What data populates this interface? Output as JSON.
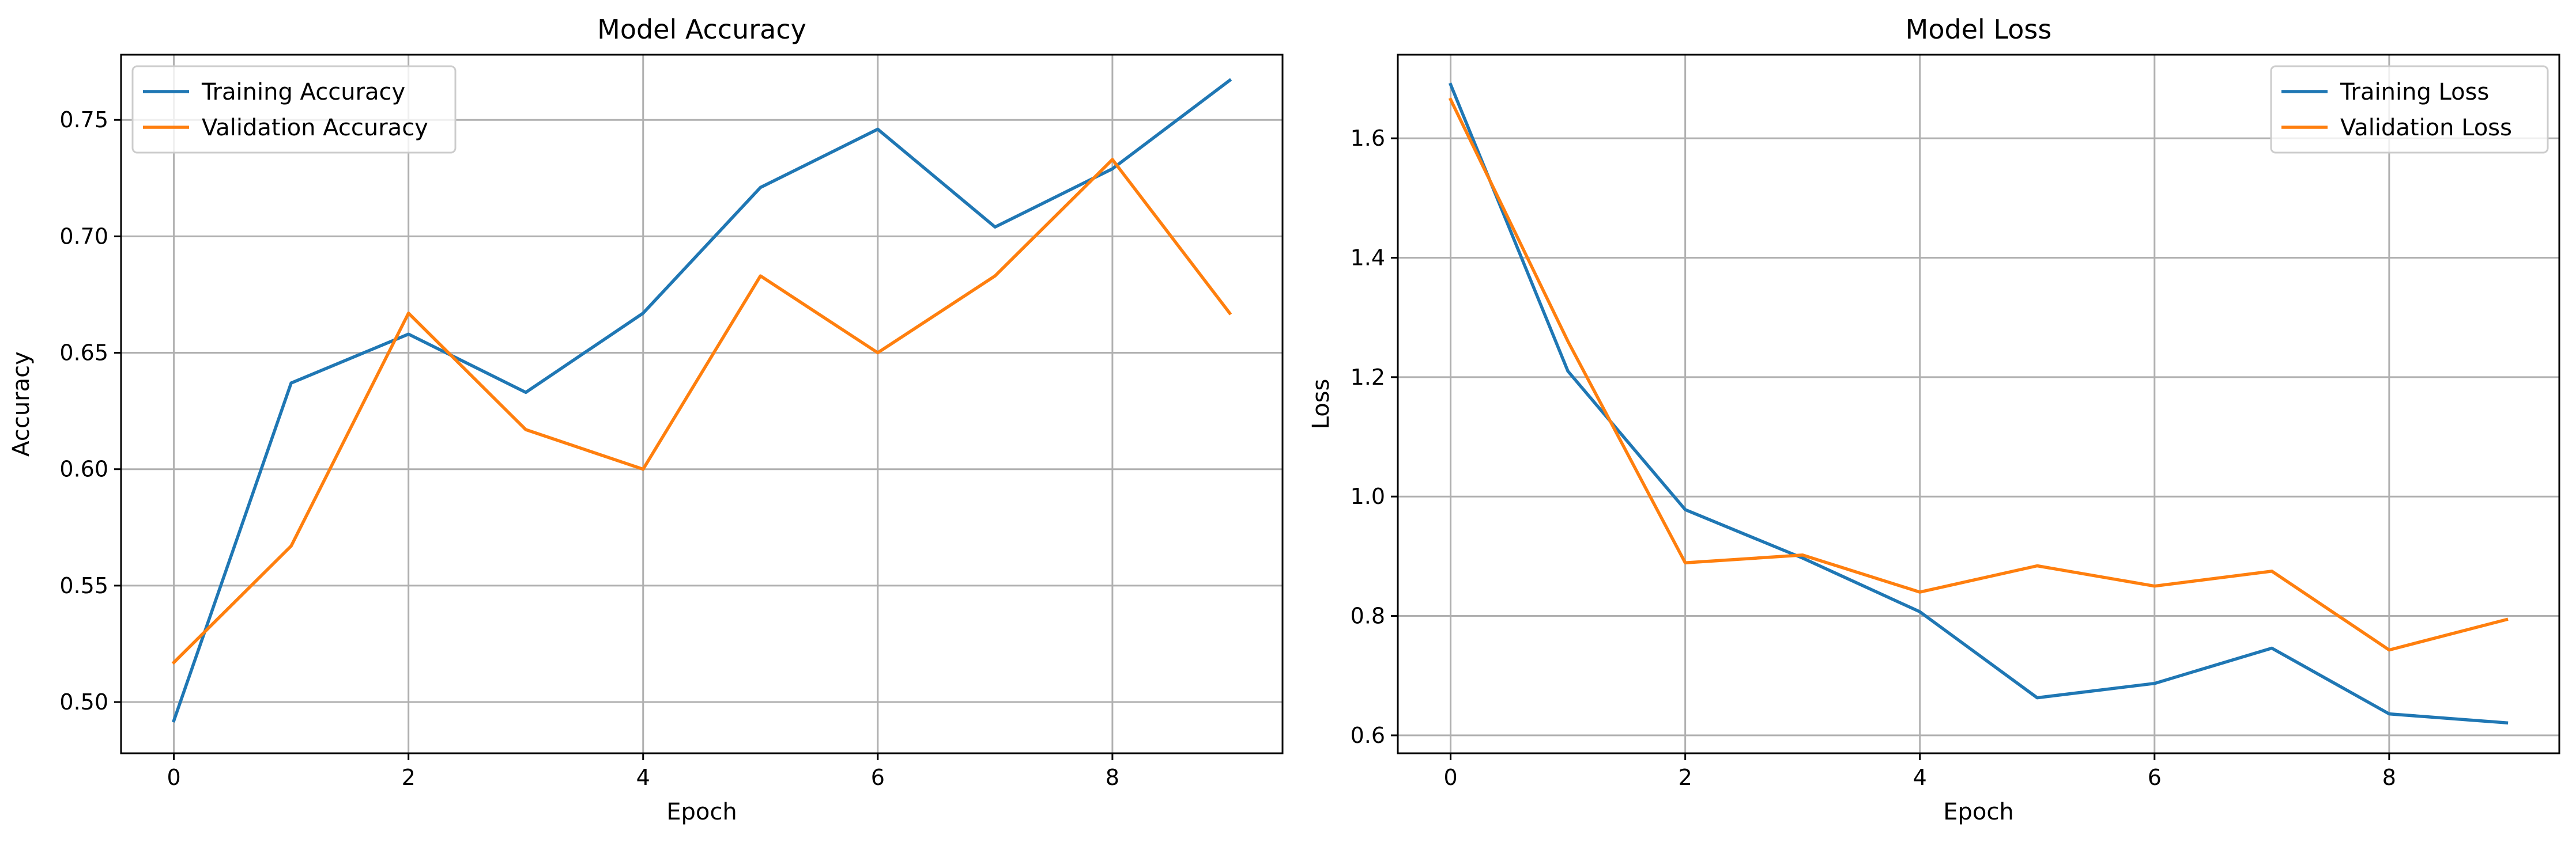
{
  "chart_data": [
    {
      "type": "line",
      "title": "Model Accuracy",
      "xlabel": "Epoch",
      "ylabel": "Accuracy",
      "xlim": [
        -0.45,
        9.45
      ],
      "ylim": [
        0.478,
        0.778
      ],
      "xticks": [
        0,
        2,
        4,
        6,
        8
      ],
      "yticks": [
        0.5,
        0.55,
        0.6,
        0.65,
        0.7,
        0.75
      ],
      "ytick_labels": [
        "0.50",
        "0.55",
        "0.60",
        "0.65",
        "0.70",
        "0.75"
      ],
      "grid": true,
      "legend_position": "upper-left",
      "x": [
        0,
        1,
        2,
        3,
        4,
        5,
        6,
        7,
        8,
        9
      ],
      "series": [
        {
          "name": "Training Accuracy",
          "color": "#1f77b4",
          "values": [
            0.492,
            0.637,
            0.658,
            0.633,
            0.667,
            0.721,
            0.746,
            0.704,
            0.729,
            0.767
          ]
        },
        {
          "name": "Validation Accuracy",
          "color": "#ff7f0e",
          "values": [
            0.517,
            0.567,
            0.667,
            0.617,
            0.6,
            0.683,
            0.65,
            0.683,
            0.733,
            0.667
          ]
        }
      ]
    },
    {
      "type": "line",
      "title": "Model Loss",
      "xlabel": "Epoch",
      "ylabel": "Loss",
      "xlim": [
        -0.45,
        9.45
      ],
      "ylim": [
        0.57,
        1.74
      ],
      "xticks": [
        0,
        2,
        4,
        6,
        8
      ],
      "yticks": [
        0.6,
        0.8,
        1.0,
        1.2,
        1.4,
        1.6
      ],
      "ytick_labels": [
        "0.6",
        "0.8",
        "1.0",
        "1.2",
        "1.4",
        "1.6"
      ],
      "grid": true,
      "legend_position": "upper-right",
      "x": [
        0,
        1,
        2,
        3,
        4,
        5,
        6,
        7,
        8,
        9
      ],
      "series": [
        {
          "name": "Training Loss",
          "color": "#1f77b4",
          "values": [
            1.69,
            1.21,
            0.978,
            0.897,
            0.807,
            0.663,
            0.687,
            0.746,
            0.636,
            0.621
          ]
        },
        {
          "name": "Validation Loss",
          "color": "#ff7f0e",
          "values": [
            1.665,
            1.26,
            0.889,
            0.902,
            0.84,
            0.884,
            0.85,
            0.875,
            0.743,
            0.794
          ]
        }
      ]
    }
  ]
}
